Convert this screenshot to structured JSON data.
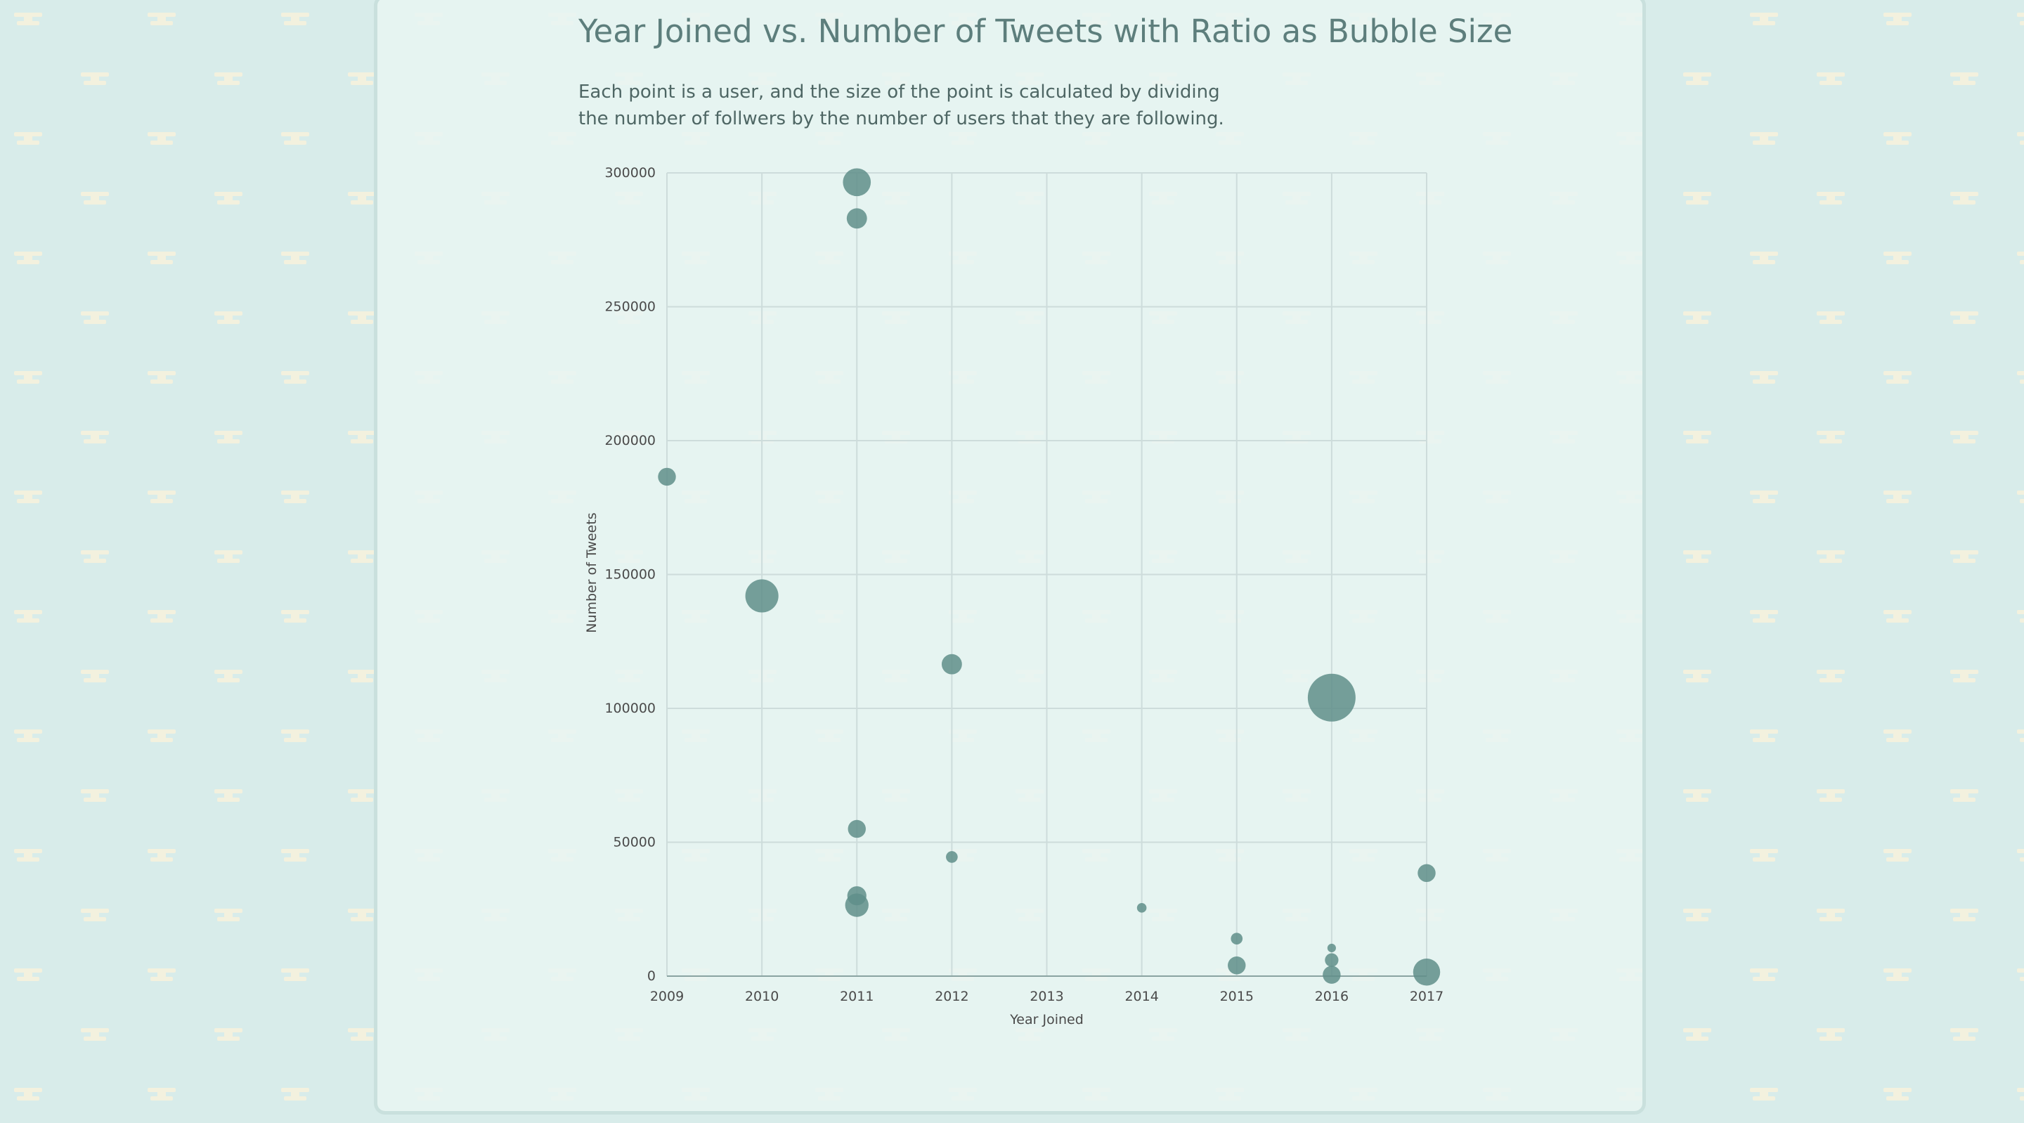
{
  "page": {
    "title": "Year Joined vs. Number of Tweets with Ratio as Bubble Size",
    "description_lines": [
      "Each point is a user, and the size of the point is calculated by dividing",
      "the number of follwers by the number of users that they are following."
    ]
  },
  "colors": {
    "background": "#d8ecea",
    "pattern": "#f3f1de",
    "panel": "#e8f4f2",
    "bubble": "#5f8e89",
    "grid": "#cddcdb",
    "axis": "#8aa3a1",
    "text": "#5d7e7c"
  },
  "chart_data": {
    "type": "scatter",
    "title": "Year Joined vs. Number of Tweets with Ratio as Bubble Size",
    "xlabel": "Year Joined",
    "ylabel": "Number of Tweets",
    "xlim": [
      2009,
      2017
    ],
    "ylim": [
      0,
      300000
    ],
    "x_ticks": [
      "2009",
      "2010",
      "2011",
      "2012",
      "2013",
      "2014",
      "2015",
      "2016",
      "2017"
    ],
    "y_ticks": [
      "0",
      "50000",
      "100000",
      "150000",
      "200000",
      "250000",
      "300000"
    ],
    "grid": true,
    "bubble_size": "ratio of followers to following",
    "points": [
      {
        "x": 2009,
        "y": 186500,
        "size": 3.5
      },
      {
        "x": 2010,
        "y": 142000,
        "size": 12
      },
      {
        "x": 2011,
        "y": 296500,
        "size": 8.5
      },
      {
        "x": 2011,
        "y": 283000,
        "size": 4.5
      },
      {
        "x": 2011,
        "y": 55000,
        "size": 3.5
      },
      {
        "x": 2011,
        "y": 30000,
        "size": 4
      },
      {
        "x": 2011,
        "y": 26500,
        "size": 6
      },
      {
        "x": 2012,
        "y": 116500,
        "size": 4.5
      },
      {
        "x": 2012,
        "y": 44500,
        "size": 1.5
      },
      {
        "x": 2014,
        "y": 25500,
        "size": 1
      },
      {
        "x": 2015,
        "y": 14000,
        "size": 1.5
      },
      {
        "x": 2015,
        "y": 4000,
        "size": 3.5
      },
      {
        "x": 2016,
        "y": 104000,
        "size": 25
      },
      {
        "x": 2016,
        "y": 10500,
        "size": 0.8
      },
      {
        "x": 2016,
        "y": 6000,
        "size": 2
      },
      {
        "x": 2016,
        "y": 500,
        "size": 3.5
      },
      {
        "x": 2017,
        "y": 38500,
        "size": 3.5
      },
      {
        "x": 2017,
        "y": 1500,
        "size": 8
      }
    ]
  }
}
